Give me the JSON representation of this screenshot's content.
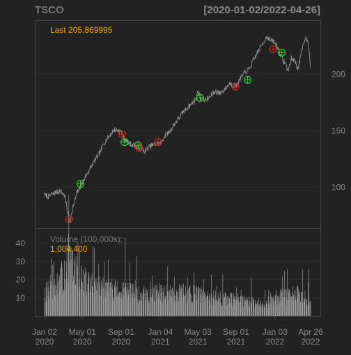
{
  "header": {
    "symbol": "TSCO",
    "date_range": "[2020-01-02/2022-04-26]"
  },
  "price_panel": {
    "last_label": "Last 205.869995"
  },
  "volume_panel": {
    "label": "Volume (100,000s):",
    "value": "1,004,400"
  },
  "colors": {
    "background": "#222222",
    "panel_border": "#444444",
    "grid": "#2e2e2e",
    "price_line": "#8c8c8c",
    "volume_bar": "#9a9a9a",
    "axis_text": "#888888",
    "accent": "#ffa500",
    "buy_marker": "#33cc33",
    "sell_marker": "#cc2222"
  },
  "chart_data": [
    {
      "type": "line",
      "title": "TSCO",
      "subtitle": "[2020-01-02/2022-04-26]",
      "xlabel": "",
      "ylabel": "",
      "ylim": [
        64,
        247
      ],
      "yticks": [
        100,
        150,
        200
      ],
      "grid": true,
      "x_ticks": [
        {
          "date": "2020-01-02",
          "label1": "Jan 02",
          "label2": "2020"
        },
        {
          "date": "2020-05-01",
          "label1": "May 01",
          "label2": "2020"
        },
        {
          "date": "2020-09-01",
          "label1": "Sep 01",
          "label2": "2020"
        },
        {
          "date": "2021-01-04",
          "label1": "Jan 04",
          "label2": "2021"
        },
        {
          "date": "2021-05-03",
          "label1": "May 03",
          "label2": "2021"
        },
        {
          "date": "2021-09-01",
          "label1": "Sep 01",
          "label2": "2021"
        },
        {
          "date": "2022-01-03",
          "label1": "Jan 03",
          "label2": "2022"
        },
        {
          "date": "2022-04-26",
          "label1": "Apr 26",
          "label2": "2022"
        }
      ],
      "series": [
        {
          "x": [
            "2020-01-02",
            "2020-01-15",
            "2020-02-01",
            "2020-02-19",
            "2020-03-05",
            "2020-03-12",
            "2020-03-18",
            "2020-03-23",
            "2020-04-01",
            "2020-04-15",
            "2020-05-01",
            "2020-05-20",
            "2020-06-08",
            "2020-06-25",
            "2020-07-10",
            "2020-07-27",
            "2020-08-10",
            "2020-08-25",
            "2020-09-01",
            "2020-09-10",
            "2020-09-25",
            "2020-10-05",
            "2020-10-20",
            "2020-11-02",
            "2020-11-16",
            "2020-12-01",
            "2020-12-15",
            "2021-01-04",
            "2021-01-20",
            "2021-02-05",
            "2021-02-20",
            "2021-03-08",
            "2021-03-25",
            "2021-04-10",
            "2021-04-27",
            "2021-05-03",
            "2021-05-12",
            "2021-05-27",
            "2021-06-10",
            "2021-06-28",
            "2021-07-12",
            "2021-07-28",
            "2021-08-12",
            "2021-08-27",
            "2021-09-01",
            "2021-09-13",
            "2021-09-28",
            "2021-10-12",
            "2021-10-28",
            "2021-11-10",
            "2021-11-24",
            "2021-12-08",
            "2021-12-20",
            "2022-01-03",
            "2022-01-12",
            "2022-01-24",
            "2022-02-03",
            "2022-02-14",
            "2022-02-24",
            "2022-03-07",
            "2022-03-17",
            "2022-03-29",
            "2022-04-08",
            "2022-04-18",
            "2022-04-26"
          ],
          "values": [
            93,
            92,
            95,
            97,
            93,
            84,
            75,
            70,
            82,
            96,
            104,
            114,
            123,
            130,
            140,
            146,
            151,
            150,
            149,
            143,
            139,
            138,
            136,
            134,
            132,
            136,
            138,
            139,
            146,
            150,
            157,
            163,
            169,
            173,
            178,
            184,
            179,
            177,
            180,
            185,
            183,
            187,
            192,
            190,
            189,
            195,
            201,
            204,
            213,
            220,
            227,
            233,
            230,
            228,
            223,
            215,
            210,
            203,
            214,
            212,
            205,
            220,
            232,
            230,
            206
          ],
          "last": 205.869995
        }
      ],
      "markers": [
        {
          "type": "sell",
          "x": "2020-03-20",
          "y": 72
        },
        {
          "type": "buy",
          "x": "2020-04-25",
          "y": 103
        },
        {
          "type": "sell",
          "x": "2020-09-05",
          "y": 147
        },
        {
          "type": "buy",
          "x": "2020-09-12",
          "y": 140
        },
        {
          "type": "buy",
          "x": "2020-10-25",
          "y": 137
        },
        {
          "type": "sell",
          "x": "2020-10-28",
          "y": 135
        },
        {
          "type": "sell",
          "x": "2020-12-28",
          "y": 140
        },
        {
          "type": "buy",
          "x": "2021-05-10",
          "y": 179
        },
        {
          "type": "sell",
          "x": "2021-08-30",
          "y": 189
        },
        {
          "type": "buy",
          "x": "2021-10-08",
          "y": 195
        },
        {
          "type": "sell",
          "x": "2021-12-28",
          "y": 222
        },
        {
          "type": "buy",
          "x": "2022-01-24",
          "y": 219
        }
      ]
    },
    {
      "type": "bar",
      "title": "Volume (100,000s):",
      "ylim": [
        0,
        48
      ],
      "yticks": [
        10,
        20,
        30,
        40
      ],
      "grid": true,
      "last_value": 1004400,
      "series": [
        {
          "x": [
            "2020-01-02",
            "2020-02-01",
            "2020-03-01",
            "2020-03-16",
            "2020-04-01",
            "2020-05-01",
            "2020-06-01",
            "2020-07-01",
            "2020-08-01",
            "2020-09-01",
            "2020-10-01",
            "2020-11-01",
            "2020-12-01",
            "2021-01-01",
            "2021-02-01",
            "2021-03-01",
            "2021-04-01",
            "2021-05-01",
            "2021-06-01",
            "2021-07-01",
            "2021-08-01",
            "2021-09-01",
            "2021-10-01",
            "2021-11-01",
            "2021-12-01",
            "2022-01-01",
            "2022-02-01",
            "2022-03-01",
            "2022-04-01",
            "2022-04-26"
          ],
          "values": [
            13,
            14,
            22,
            30,
            25,
            20,
            17,
            15,
            15,
            13,
            13,
            12,
            11,
            13,
            12,
            13,
            12,
            12,
            10,
            10,
            9,
            9,
            8,
            7,
            7,
            10,
            11,
            12,
            12,
            10
          ]
        }
      ],
      "spikes": [
        {
          "x": "2020-01-28",
          "y": 28
        },
        {
          "x": "2020-03-18",
          "y": 45
        },
        {
          "x": "2020-04-22",
          "y": 36
        },
        {
          "x": "2020-07-22",
          "y": 31
        },
        {
          "x": "2020-09-14",
          "y": 43
        },
        {
          "x": "2020-10-21",
          "y": 33
        },
        {
          "x": "2021-01-27",
          "y": 27
        },
        {
          "x": "2021-04-21",
          "y": 24
        },
        {
          "x": "2021-07-21",
          "y": 23
        },
        {
          "x": "2021-10-20",
          "y": 21
        },
        {
          "x": "2022-01-26",
          "y": 22
        },
        {
          "x": "2022-04-20",
          "y": 26
        }
      ]
    }
  ]
}
